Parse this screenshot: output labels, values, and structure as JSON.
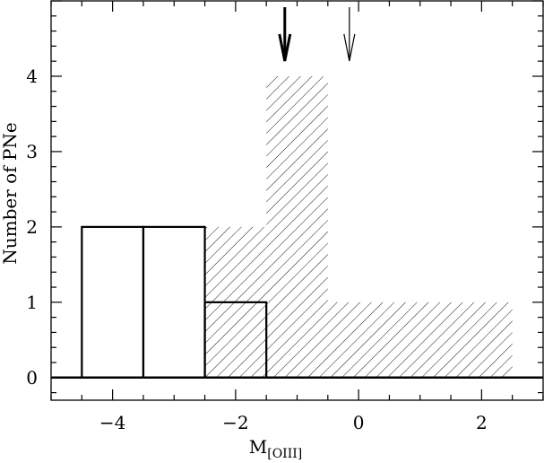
{
  "chart_data": {
    "type": "bar",
    "xlabel": "M",
    "xlabel_subscript": "[OIII]",
    "ylabel": "Number of PNe",
    "xlim": [
      -5,
      3
    ],
    "ylim": [
      -0.3,
      5
    ],
    "x_ticks": [
      -4,
      -2,
      0,
      2
    ],
    "x_tick_labels": [
      "−4",
      "−2",
      "0",
      "2"
    ],
    "y_ticks": [
      0,
      1,
      2,
      3,
      4
    ],
    "y_tick_labels": [
      "0",
      "1",
      "2",
      "3",
      "4"
    ],
    "bin_width": 1,
    "series": [
      {
        "style": "hatched",
        "bins": [
          {
            "x0": -2.5,
            "x1": -1.5,
            "value": 2
          },
          {
            "x0": -1.5,
            "x1": -0.5,
            "value": 4
          },
          {
            "x0": -0.5,
            "x1": 0.5,
            "value": 1
          },
          {
            "x0": 0.5,
            "x1": 1.5,
            "value": 1
          },
          {
            "x0": 1.5,
            "x1": 2.5,
            "value": 1
          }
        ]
      },
      {
        "style": "outline",
        "bins": [
          {
            "x0": -4.5,
            "x1": -3.5,
            "value": 2
          },
          {
            "x0": -3.5,
            "x1": -2.5,
            "value": 2
          },
          {
            "x0": -2.5,
            "x1": -1.5,
            "value": 1
          }
        ]
      }
    ],
    "arrows": [
      {
        "x": -1.2,
        "style": "bold"
      },
      {
        "x": -0.15,
        "style": "thin"
      }
    ],
    "zero_line": true,
    "grid": false
  }
}
